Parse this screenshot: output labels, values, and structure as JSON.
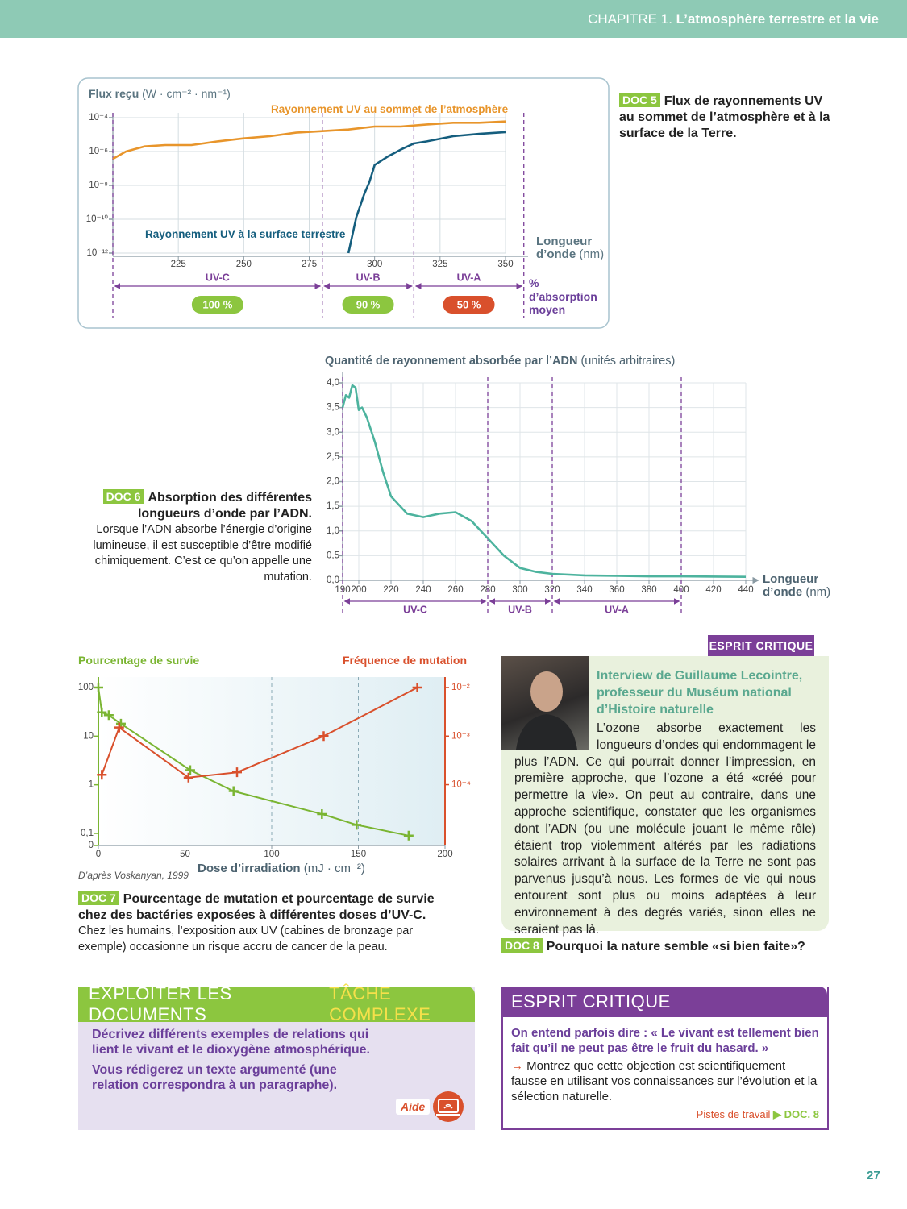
{
  "header": {
    "chapter": "CHAPITRE 1.",
    "title": "L’atmosphère terrestre et la vie"
  },
  "chart_data": [
    {
      "type": "line",
      "y_label": "Flux reçu",
      "y_unit": "(W · cm⁻² · nm⁻¹)",
      "x_label": "Longueur d’onde",
      "x_unit": "(nm)",
      "log_y": true,
      "grid": true,
      "xlim": [
        200,
        350
      ],
      "xticks": [
        225,
        250,
        275,
        300,
        325,
        350
      ],
      "ylim": [
        1e-12,
        0.0001
      ],
      "yticks": [
        {
          "value": 0.0001,
          "label": "10⁻⁴"
        },
        {
          "value": 1e-06,
          "label": "10⁻⁶"
        },
        {
          "value": 1e-08,
          "label": "10⁻⁸"
        },
        {
          "value": 1e-10,
          "label": "10⁻¹⁰"
        },
        {
          "value": 1e-12,
          "label": "10⁻¹²"
        }
      ],
      "series": [
        {
          "name": "Rayonnement UV au sommet de l’atmosphère",
          "color": "#e8952b",
          "x": [
            200,
            205,
            212,
            220,
            230,
            240,
            250,
            260,
            270,
            280,
            290,
            300,
            310,
            320,
            330,
            340,
            350
          ],
          "values": [
            3.7e-07,
            1e-06,
            2e-06,
            2.4e-06,
            2.4e-06,
            4e-06,
            6e-06,
            8e-06,
            1.3e-05,
            1.6e-05,
            2e-05,
            3e-05,
            3e-05,
            4e-05,
            5e-05,
            5e-05,
            6e-05
          ]
        },
        {
          "name": "Rayonnement UV à la surface terrestre",
          "color": "#155e7e",
          "x": [
            290,
            293,
            296,
            298,
            300,
            305,
            310,
            315,
            320,
            330,
            340,
            350
          ],
          "values": [
            1e-12,
            1.3e-10,
            3e-09,
            1.6e-08,
            1.6e-07,
            5e-07,
            1.3e-06,
            3e-06,
            4e-06,
            8e-06,
            1.1e-05,
            1.4e-05
          ]
        }
      ],
      "bands": [
        {
          "name": "UV-C",
          "from": 200,
          "to": 280,
          "absorption": "100 %",
          "color": "#8cc63f"
        },
        {
          "name": "UV-B",
          "from": 280,
          "to": 315,
          "absorption": "90 %",
          "color": "#8cc63f"
        },
        {
          "name": "UV-A",
          "from": 315,
          "to": 357,
          "absorption": "50 %",
          "color": "#d9502c"
        }
      ],
      "band_axis_label": "% d’absorption moyen"
    },
    {
      "type": "line",
      "title": "Quantité de rayonnement absorbée par l’ADN",
      "title_unit": "(unités arbitraires)",
      "x_label": "Longueur d’onde",
      "x_unit": "(nm)",
      "grid": true,
      "xlim": [
        190,
        440
      ],
      "xticks": [
        190,
        200,
        220,
        240,
        260,
        280,
        300,
        320,
        340,
        360,
        380,
        400,
        420,
        440
      ],
      "ylim": [
        0,
        4
      ],
      "yticks": [
        {
          "value": 0,
          "label": "0,0"
        },
        {
          "value": 0.5,
          "label": "0,5"
        },
        {
          "value": 1,
          "label": "1,0"
        },
        {
          "value": 1.5,
          "label": "1,5"
        },
        {
          "value": 2,
          "label": "2,0"
        },
        {
          "value": 2.5,
          "label": "2,5"
        },
        {
          "value": 3,
          "label": "3,0"
        },
        {
          "value": 3.5,
          "label": "3,5"
        },
        {
          "value": 4,
          "label": "4,0"
        }
      ],
      "series": [
        {
          "color": "#4db39e",
          "x": [
            190,
            192,
            194,
            196,
            198,
            200,
            202,
            205,
            210,
            215,
            220,
            230,
            240,
            250,
            260,
            270,
            280,
            290,
            300,
            310,
            320,
            340,
            360,
            380,
            400,
            440
          ],
          "values": [
            3.5,
            3.75,
            3.7,
            3.95,
            3.9,
            3.45,
            3.5,
            3.3,
            2.8,
            2.2,
            1.7,
            1.35,
            1.28,
            1.35,
            1.38,
            1.2,
            0.85,
            0.5,
            0.25,
            0.17,
            0.13,
            0.1,
            0.09,
            0.08,
            0.08,
            0.07
          ]
        }
      ],
      "bands": [
        {
          "name": "UV-C",
          "from": 190,
          "to": 280
        },
        {
          "name": "UV-B",
          "from": 280,
          "to": 320
        },
        {
          "name": "UV-A",
          "from": 320,
          "to": 400
        }
      ]
    },
    {
      "type": "line",
      "x_label": "Dose d’irradiation",
      "x_unit": "(mJ · cm⁻²)",
      "grid": "x",
      "log_y": true,
      "log_y2": true,
      "xlim": [
        0,
        200
      ],
      "xticks": [
        0,
        50,
        100,
        150,
        200
      ],
      "ylim": [
        0,
        100
      ],
      "yticks": [
        {
          "value": 0,
          "label": "0"
        },
        {
          "value": 0.1,
          "label": "0,1"
        },
        1,
        10,
        100
      ],
      "y2lim": [
        5.6e-06,
        0.01
      ],
      "y2ticks": [
        {
          "value": 0.0001,
          "label": "10⁻⁴"
        },
        {
          "value": 0.001,
          "label": "10⁻³"
        },
        {
          "value": 0.01,
          "label": "10⁻²"
        }
      ],
      "series": [
        {
          "name": "Pourcentage de survie",
          "color": "#7ab532",
          "marker": "+",
          "x": [
            0,
            2,
            6,
            13,
            53,
            78,
            129,
            149,
            179
          ],
          "values": [
            100,
            31,
            27,
            18,
            2,
            0.74,
            0.25,
            0.15,
            0.09
          ]
        },
        {
          "name": "Fréquence de mutation",
          "color": "#d9502c",
          "marker": "+",
          "axis": "y2",
          "x": [
            2,
            12,
            52,
            80,
            130,
            184
          ],
          "values": [
            0.00016,
            0.0015,
            0.00014,
            0.00018,
            0.001,
            0.01
          ]
        }
      ]
    }
  ],
  "doc5": {
    "label": "DOC 5",
    "caption": "Flux de rayonnements UV au sommet de l’atmosphère et à la surface de la Terre."
  },
  "doc6": {
    "label": "DOC 6",
    "caption_title": "Absorption des différentes longueurs d’onde par l’ADN.",
    "caption_text": "Lorsque l’ADN absorbe l’énergie d’origine lumineuse, il est susceptible d’être modifié chimiquement. C’est ce qu’on appelle une mutation."
  },
  "doc7": {
    "source": "D’après Voskanyan, 1999",
    "label": "DOC 7",
    "caption_title": "Pourcentage de mutation et pourcentage de survie chez des bactéries exposées à différentes doses d’UV-C.",
    "caption_text": "Chez les humains, l’exposition aux UV (cabines de bronzage par exemple) occasionne un risque accru de cancer de la peau."
  },
  "doc8": {
    "badge": "ESPRIT CRITIQUE",
    "heading": "Interview de Guillaume Lecointre, professeur du Muséum national d’Histoire naturelle",
    "text": "L’ozone absorbe exactement les longueurs d’ondes qui endommagent le plus l’ADN. Ce qui pourrait donner l’impression, en première approche, que l’ozone a été «créé pour permettre la vie». On peut au contraire, dans une approche scientifique, constater que les organismes dont l’ADN (ou une molécule jouant le même rôle) étaient trop violemment altérés par les radiations solaires arrivant à la surface de la Terre ne sont pas parvenus jusqu’à nous. Les formes de vie qui nous entourent sont plus ou moins adaptées à leur environnement à des degrés variés, sinon elles ne seraient pas là.",
    "label": "DOC 8",
    "caption": "Pourquoi la nature semble «si bien faite»?"
  },
  "exploit": {
    "title": "EXPLOITER LES DOCUMENTS",
    "subtitle": "TÂCHE COMPLEXE",
    "paragraphs": [
      "Décrivez différents exemples de relations qui lient le vivant et le dioxygène atmosphérique.",
      "Vous rédigerez un texte argumenté (une relation correspondra à un paragraphe)."
    ],
    "help": "Aide"
  },
  "critique": {
    "title": "ESPRIT CRITIQUE",
    "quote": "On entend parfois dire : « Le vivant est tellement bien fait qu’il ne peut pas être le fruit du hasard. »",
    "instruction": "Montrez que cette objection est scientifiquement fausse en utilisant vos connaissances sur l’évolution et la sélection naturelle.",
    "link": "Pistes de travail",
    "ref": "DOC. 8"
  },
  "page_number": "27"
}
